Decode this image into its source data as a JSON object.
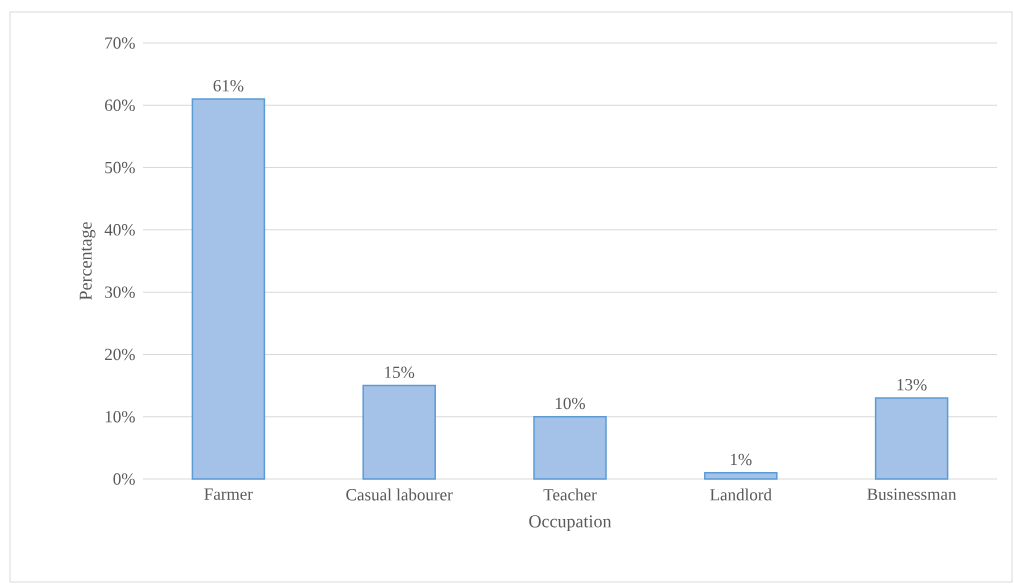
{
  "chart_data": {
    "type": "bar",
    "xlabel": "Occupation",
    "ylabel": "Percentage",
    "categories": [
      "Farmer",
      "Casual labourer",
      "Teacher",
      "Landlord",
      "Businessman"
    ],
    "values": [
      61,
      15,
      10,
      1,
      13
    ],
    "value_labels": [
      "61%",
      "15%",
      "10%",
      "1%",
      "13%"
    ],
    "color": "#a4c2e8",
    "ylim": [
      0,
      70
    ],
    "yticks": [
      {
        "value": 0,
        "label": "0%"
      },
      {
        "value": 10,
        "label": "10%"
      },
      {
        "value": 20,
        "label": "20%"
      },
      {
        "value": 30,
        "label": "30%"
      },
      {
        "value": 40,
        "label": "40%"
      },
      {
        "value": 50,
        "label": "50%"
      },
      {
        "value": 60,
        "label": "60%"
      },
      {
        "value": 70,
        "label": "70%"
      }
    ],
    "grid": "y"
  }
}
